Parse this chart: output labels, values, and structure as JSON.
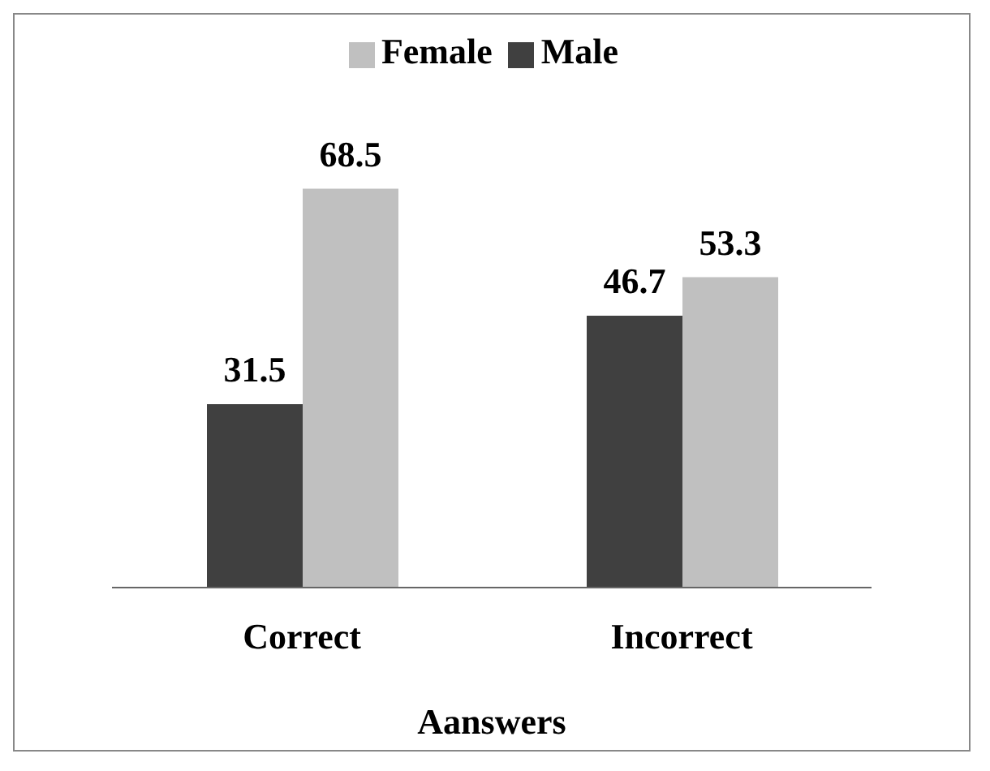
{
  "chart_data": {
    "type": "bar",
    "xlabel": "Aanswers",
    "categories": [
      "Correct",
      "Incorrect"
    ],
    "series": [
      {
        "name": "Male",
        "color": "#404040",
        "values": [
          31.5,
          46.7
        ]
      },
      {
        "name": "Female",
        "color": "#c0c0c0",
        "values": [
          68.5,
          53.3
        ]
      }
    ],
    "data_labels": true,
    "legend": "top",
    "grid": false
  }
}
